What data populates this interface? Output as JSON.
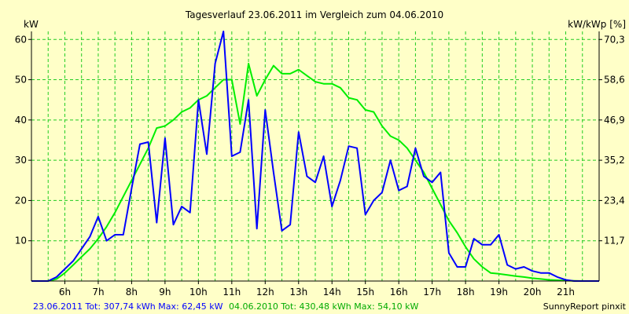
{
  "colors": {
    "background": "#ffffc8",
    "grid": "#22cc22",
    "axis": "#000000",
    "series_2011": "#0000ff",
    "series_2010": "#00ee00"
  },
  "chart_data": {
    "type": "line",
    "title": "Tagesverlauf 23.06.2011 im Vergleich zum 04.06.2010",
    "ylabel_left": "kW",
    "ylabel_right": "kW/kWp [%]",
    "xlim": [
      5,
      22
    ],
    "ylim": [
      0,
      62
    ],
    "x_ticks": [
      {
        "v": 6,
        "label": "6h"
      },
      {
        "v": 7,
        "label": "7h"
      },
      {
        "v": 8,
        "label": "8h"
      },
      {
        "v": 9,
        "label": "9h"
      },
      {
        "v": 10,
        "label": "10h"
      },
      {
        "v": 11,
        "label": "11h"
      },
      {
        "v": 12,
        "label": "12h"
      },
      {
        "v": 13,
        "label": "13h"
      },
      {
        "v": 14,
        "label": "14h"
      },
      {
        "v": 15,
        "label": "15h"
      },
      {
        "v": 16,
        "label": "16h"
      },
      {
        "v": 17,
        "label": "17h"
      },
      {
        "v": 18,
        "label": "18h"
      },
      {
        "v": 19,
        "label": "19h"
      },
      {
        "v": 20,
        "label": "20h"
      },
      {
        "v": 21,
        "label": "21h"
      }
    ],
    "y_ticks_left": [
      {
        "v": 10,
        "label": "10"
      },
      {
        "v": 20,
        "label": "20"
      },
      {
        "v": 30,
        "label": "30"
      },
      {
        "v": 40,
        "label": "40"
      },
      {
        "v": 50,
        "label": "50"
      },
      {
        "v": 60,
        "label": "60"
      }
    ],
    "y_ticks_right": [
      {
        "v": 10,
        "label": "11,7"
      },
      {
        "v": 20,
        "label": "23,4"
      },
      {
        "v": 30,
        "label": "35,2"
      },
      {
        "v": 40,
        "label": "46,9"
      },
      {
        "v": 50,
        "label": "58,6"
      },
      {
        "v": 60,
        "label": "70,3"
      }
    ],
    "grid": true,
    "series": [
      {
        "name": "23.06.2011",
        "points": [
          [
            5.0,
            0
          ],
          [
            5.5,
            0
          ],
          [
            5.75,
            1
          ],
          [
            6.0,
            3
          ],
          [
            6.25,
            5
          ],
          [
            6.5,
            8
          ],
          [
            6.75,
            11
          ],
          [
            7.0,
            16
          ],
          [
            7.25,
            10
          ],
          [
            7.5,
            11.5
          ],
          [
            7.75,
            11.5
          ],
          [
            8.0,
            23
          ],
          [
            8.25,
            34
          ],
          [
            8.5,
            34.5
          ],
          [
            8.75,
            14.5
          ],
          [
            9.0,
            35.5
          ],
          [
            9.25,
            14
          ],
          [
            9.5,
            18.5
          ],
          [
            9.75,
            17
          ],
          [
            10.0,
            45
          ],
          [
            10.25,
            31.5
          ],
          [
            10.5,
            54
          ],
          [
            10.75,
            62
          ],
          [
            11.0,
            31
          ],
          [
            11.25,
            32
          ],
          [
            11.5,
            45
          ],
          [
            11.75,
            13
          ],
          [
            12.0,
            42.5
          ],
          [
            12.25,
            27
          ],
          [
            12.5,
            12.5
          ],
          [
            12.75,
            14
          ],
          [
            13.0,
            37
          ],
          [
            13.25,
            26
          ],
          [
            13.5,
            24.5
          ],
          [
            13.75,
            31
          ],
          [
            14.0,
            18.5
          ],
          [
            14.25,
            25
          ],
          [
            14.5,
            33.5
          ],
          [
            14.75,
            33
          ],
          [
            15.0,
            16.5
          ],
          [
            15.25,
            20
          ],
          [
            15.5,
            22
          ],
          [
            15.75,
            30
          ],
          [
            16.0,
            22.5
          ],
          [
            16.25,
            23.5
          ],
          [
            16.5,
            33
          ],
          [
            16.75,
            26
          ],
          [
            17.0,
            24.5
          ],
          [
            17.25,
            27
          ],
          [
            17.5,
            7
          ],
          [
            17.75,
            3.5
          ],
          [
            18.0,
            3.5
          ],
          [
            18.25,
            10.5
          ],
          [
            18.5,
            9
          ],
          [
            18.75,
            9
          ],
          [
            19.0,
            11.5
          ],
          [
            19.25,
            4
          ],
          [
            19.5,
            3
          ],
          [
            19.75,
            3.5
          ],
          [
            20.0,
            2.5
          ],
          [
            20.25,
            2
          ],
          [
            20.5,
            2
          ],
          [
            20.75,
            1
          ],
          [
            21.0,
            0.3
          ],
          [
            21.25,
            0
          ],
          [
            21.5,
            0
          ],
          [
            22.0,
            0
          ]
        ]
      },
      {
        "name": "04.06.2010",
        "points": [
          [
            5.0,
            0
          ],
          [
            5.5,
            0
          ],
          [
            5.75,
            0.5
          ],
          [
            6.0,
            2
          ],
          [
            6.25,
            4
          ],
          [
            6.5,
            6
          ],
          [
            6.75,
            8
          ],
          [
            7.0,
            10.5
          ],
          [
            7.25,
            13.5
          ],
          [
            7.5,
            17
          ],
          [
            7.75,
            21
          ],
          [
            8.0,
            25
          ],
          [
            8.25,
            29
          ],
          [
            8.5,
            33
          ],
          [
            8.75,
            38
          ],
          [
            9.0,
            38.5
          ],
          [
            9.25,
            40
          ],
          [
            9.5,
            42
          ],
          [
            9.75,
            43
          ],
          [
            10.0,
            45
          ],
          [
            10.25,
            46
          ],
          [
            10.5,
            48
          ],
          [
            10.75,
            50
          ],
          [
            11.0,
            50
          ],
          [
            11.25,
            39
          ],
          [
            11.5,
            54
          ],
          [
            11.75,
            46
          ],
          [
            12.0,
            50
          ],
          [
            12.25,
            53.5
          ],
          [
            12.5,
            51.5
          ],
          [
            12.75,
            51.5
          ],
          [
            13.0,
            52.5
          ],
          [
            13.25,
            51
          ],
          [
            13.5,
            49.5
          ],
          [
            13.75,
            49
          ],
          [
            14.0,
            49
          ],
          [
            14.25,
            48
          ],
          [
            14.5,
            45.5
          ],
          [
            14.75,
            45
          ],
          [
            15.0,
            42.5
          ],
          [
            15.25,
            42
          ],
          [
            15.5,
            38.5
          ],
          [
            15.75,
            36
          ],
          [
            16.0,
            35
          ],
          [
            16.25,
            33
          ],
          [
            16.5,
            30
          ],
          [
            16.75,
            27
          ],
          [
            17.0,
            23
          ],
          [
            17.25,
            19
          ],
          [
            17.5,
            15
          ],
          [
            17.75,
            12
          ],
          [
            18.0,
            8.5
          ],
          [
            18.25,
            5.5
          ],
          [
            18.5,
            3.5
          ],
          [
            18.75,
            2
          ],
          [
            19.0,
            1.8
          ],
          [
            19.25,
            1.5
          ],
          [
            19.5,
            1.2
          ],
          [
            19.75,
            1.0
          ],
          [
            20.0,
            0.7
          ],
          [
            20.25,
            0.5
          ],
          [
            20.5,
            0.3
          ],
          [
            20.75,
            0.2
          ],
          [
            21.0,
            0.1
          ],
          [
            21.5,
            0
          ],
          [
            22.0,
            0
          ]
        ]
      }
    ]
  },
  "footer": {
    "part1": "23.06.2011 Tot: 307,74 kWh Max: 62,45 kW",
    "part2": "04.06.2010 Tot: 430,48 kWh Max: 54,10 kW",
    "brand": "SunnyReport pinxit"
  }
}
